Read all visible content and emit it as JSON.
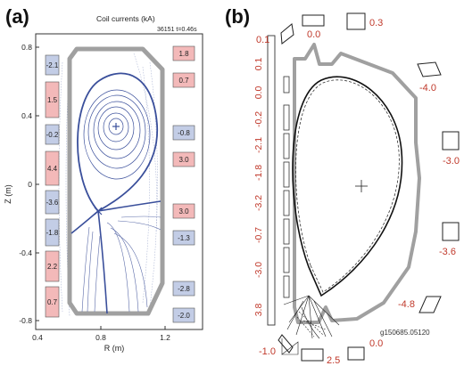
{
  "panel_a": {
    "label": "(a)",
    "title": "Coil currents (kA)",
    "shot_time": "36151 t=0.46s",
    "xlabel": "R (m)",
    "ylabel": "Z (m)",
    "xticks": [
      "0.4",
      "0.8",
      "1.2"
    ],
    "yticks": [
      "0.8",
      "0.4",
      "0",
      "-0.4",
      "-0.8"
    ],
    "left_coils": [
      {
        "value": "-2.1",
        "sign": "neg"
      },
      {
        "value": "1.5",
        "sign": "pos"
      },
      {
        "value": "-0.2",
        "sign": "neg"
      },
      {
        "value": "4.4",
        "sign": "pos"
      },
      {
        "value": "-3.6",
        "sign": "neg"
      },
      {
        "value": "-1.8",
        "sign": "neg"
      },
      {
        "value": "2.2",
        "sign": "pos"
      },
      {
        "value": "0.7",
        "sign": "pos"
      }
    ],
    "right_coils": [
      {
        "value": "1.8",
        "sign": "pos"
      },
      {
        "value": "0.7",
        "sign": "pos"
      },
      {
        "value": "-0.8",
        "sign": "neg"
      },
      {
        "value": "3.0",
        "sign": "pos"
      },
      {
        "value": "3.0",
        "sign": "pos"
      },
      {
        "value": "-1.3",
        "sign": "neg"
      },
      {
        "value": "-2.8",
        "sign": "neg"
      },
      {
        "value": "-2.0",
        "sign": "neg"
      }
    ]
  },
  "panel_b": {
    "label": "(b)",
    "shot_id": "g150685.05120",
    "column_values": [
      "0.1",
      "0.0",
      "-0.2",
      "-2.1",
      "-1.8",
      "-3.2",
      "-0.7",
      "-3.0",
      "3.8"
    ],
    "coil_labels": {
      "top_left": "0.1",
      "top_mid": "0.0",
      "top_right": "0.3",
      "right_upper": "-4.0",
      "right_mid": "-3.0",
      "right_lower": "-3.6",
      "right_bottom": "-4.8",
      "bottom_left": "-1.0",
      "bottom_right": "0.0",
      "bottom_mid": "2.5"
    }
  },
  "colors": {
    "pos_coil": "#f3b9b9",
    "neg_coil": "#c3cde6",
    "flux": "#3a4f9b",
    "wall": "#a0a0a0",
    "red_text": "#c0392b"
  }
}
